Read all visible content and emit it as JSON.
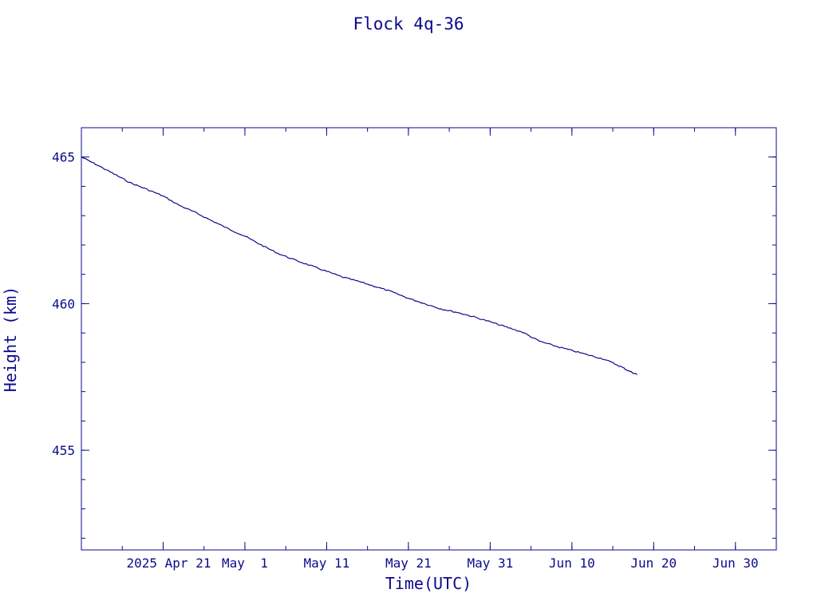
{
  "chart_data": {
    "type": "line",
    "title": "Flock 4q-36",
    "xlabel": "Time(UTC)",
    "ylabel": "Height (km)",
    "x_ticks": [
      {
        "date": "2025-04-21",
        "label": "2025 Apr 21"
      },
      {
        "date": "2025-05-01",
        "label": "May  1"
      },
      {
        "date": "2025-05-11",
        "label": "May 11"
      },
      {
        "date": "2025-05-21",
        "label": "May 21"
      },
      {
        "date": "2025-05-31",
        "label": "May 31"
      },
      {
        "date": "2025-06-10",
        "label": "Jun 10"
      },
      {
        "date": "2025-06-20",
        "label": "Jun 20"
      },
      {
        "date": "2025-06-30",
        "label": "Jun 30"
      }
    ],
    "xlim": [
      "2025-04-11",
      "2025-07-05"
    ],
    "y_ticks": [
      {
        "value": 455,
        "label": "455"
      },
      {
        "value": 460,
        "label": "460"
      },
      {
        "value": 465,
        "label": "465"
      }
    ],
    "ylim": [
      451.6,
      466.0
    ],
    "series": [
      {
        "color": "#0a0a8c",
        "points": [
          {
            "x": "2025-04-11",
            "y": 465.0
          },
          {
            "x": "2025-04-13",
            "y": 464.72
          },
          {
            "x": "2025-04-15",
            "y": 464.42
          },
          {
            "x": "2025-04-17",
            "y": 464.12
          },
          {
            "x": "2025-04-19",
            "y": 463.9
          },
          {
            "x": "2025-04-21",
            "y": 463.67
          },
          {
            "x": "2025-04-23",
            "y": 463.35
          },
          {
            "x": "2025-04-25",
            "y": 463.1
          },
          {
            "x": "2025-04-27",
            "y": 462.82
          },
          {
            "x": "2025-04-29",
            "y": 462.55
          },
          {
            "x": "2025-05-01",
            "y": 462.3
          },
          {
            "x": "2025-05-03",
            "y": 462.0
          },
          {
            "x": "2025-05-05",
            "y": 461.72
          },
          {
            "x": "2025-05-07",
            "y": 461.5
          },
          {
            "x": "2025-05-09",
            "y": 461.3
          },
          {
            "x": "2025-05-11",
            "y": 461.1
          },
          {
            "x": "2025-05-13",
            "y": 460.9
          },
          {
            "x": "2025-05-15",
            "y": 460.75
          },
          {
            "x": "2025-05-17",
            "y": 460.58
          },
          {
            "x": "2025-05-19",
            "y": 460.4
          },
          {
            "x": "2025-05-21",
            "y": 460.18
          },
          {
            "x": "2025-05-23",
            "y": 460.0
          },
          {
            "x": "2025-05-25",
            "y": 459.82
          },
          {
            "x": "2025-05-27",
            "y": 459.7
          },
          {
            "x": "2025-05-29",
            "y": 459.55
          },
          {
            "x": "2025-05-31",
            "y": 459.38
          },
          {
            "x": "2025-06-02",
            "y": 459.2
          },
          {
            "x": "2025-06-04",
            "y": 459.02
          },
          {
            "x": "2025-06-06",
            "y": 458.72
          },
          {
            "x": "2025-06-08",
            "y": 458.55
          },
          {
            "x": "2025-06-10",
            "y": 458.4
          },
          {
            "x": "2025-06-12",
            "y": 458.25
          },
          {
            "x": "2025-06-14",
            "y": 458.1
          },
          {
            "x": "2025-06-16",
            "y": 457.85
          },
          {
            "x": "2025-06-17",
            "y": 457.7
          },
          {
            "x": "2025-06-18",
            "y": 457.58
          }
        ]
      }
    ],
    "grid": false,
    "legend": "none"
  }
}
